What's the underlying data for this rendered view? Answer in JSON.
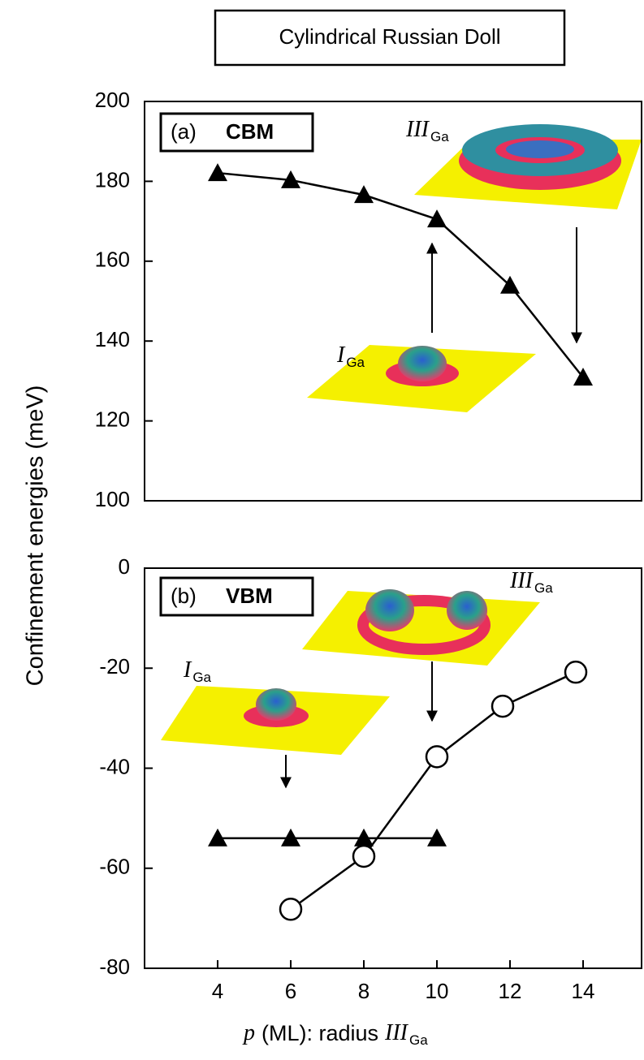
{
  "chart_data": [
    {
      "type": "line",
      "title": "Cylindrical Russian Doll",
      "ylabel": "Confinement energies (meV)",
      "panel_label": [
        "(a)",
        "CBM"
      ],
      "xlim": [
        2,
        15.6
      ],
      "ylim": [
        100,
        200
      ],
      "yticks": [
        100,
        120,
        140,
        160,
        180,
        200
      ],
      "series": [
        {
          "marker": "triangle",
          "color": "#000000",
          "x": [
            4,
            6,
            8,
            10,
            12,
            14
          ],
          "values": [
            182.1,
            180.3,
            176.6,
            170.5,
            153.9,
            130.9
          ]
        }
      ],
      "annotations": [
        {
          "text": "III",
          "sub": "Ga"
        },
        {
          "text": "I",
          "sub": "Ga"
        }
      ]
    },
    {
      "type": "line",
      "xlabel": [
        "p",
        "(ML): radius",
        "III",
        "Ga"
      ],
      "panel_label": [
        "(b)",
        "VBM"
      ],
      "xlim": [
        2,
        15.6
      ],
      "xticks": [
        4,
        6,
        8,
        10,
        12,
        14
      ],
      "ylim": [
        -80,
        0
      ],
      "yticks": [
        -80,
        -60,
        -40,
        -20,
        0
      ],
      "series": [
        {
          "marker": "triangle",
          "color": "#000000",
          "x": [
            4,
            6,
            8,
            10
          ],
          "values": [
            -54,
            -54,
            -54,
            -54
          ]
        },
        {
          "marker": "circle",
          "color": "#000000",
          "x": [
            6,
            8,
            10,
            11.8,
            13.8
          ],
          "values": [
            -68.2,
            -57.6,
            -37.7,
            -27.6,
            -20.8
          ]
        }
      ],
      "annotations": [
        {
          "text": "III",
          "sub": "Ga"
        },
        {
          "text": "I",
          "sub": "Ga"
        }
      ]
    }
  ]
}
